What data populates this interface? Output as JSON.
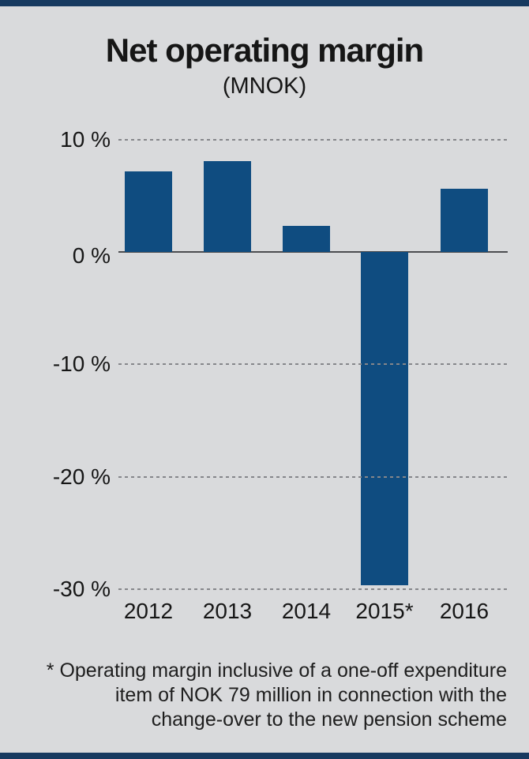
{
  "page": {
    "background_color": "#d9dadc",
    "accent_bar_color": "#173a60",
    "text_color": "#161616"
  },
  "chart_data": {
    "type": "bar",
    "title": "Net operating margin",
    "subtitle": "(MNOK)",
    "categories": [
      "2012",
      "2013",
      "2014",
      "2015*",
      "2016"
    ],
    "values": [
      7.2,
      8.1,
      2.3,
      -29.7,
      5.6
    ],
    "unit": "%",
    "bar_color": "#0f4c80",
    "ylim": [
      -30,
      10
    ],
    "ytick_values": [
      10,
      0,
      -10,
      -20,
      -30
    ],
    "ytick_labels": [
      "10 %",
      "0 %",
      "-10 %",
      "-20 %",
      "-30 %"
    ],
    "xlabel": "",
    "ylabel": "",
    "grid": "horizontal dashed gridlines, solid zero axis",
    "legend": "none"
  },
  "footnote": {
    "lines": [
      "* Operating margin inclusive of a one-off expenditure",
      "item of NOK 79 million in connection with the",
      "change-over to the new pension scheme"
    ]
  }
}
